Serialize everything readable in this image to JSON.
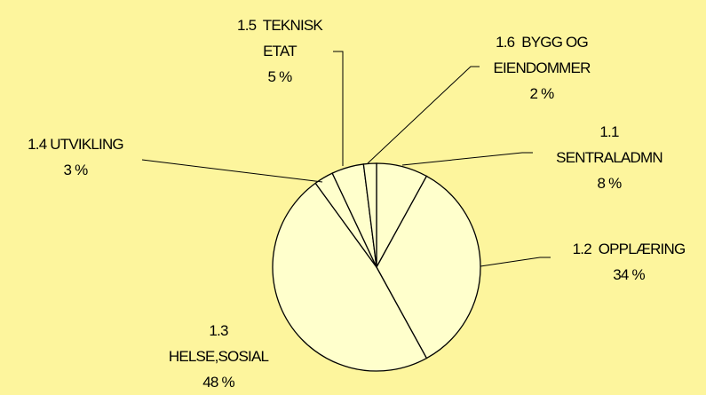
{
  "chart_data": {
    "type": "pie",
    "categories": [
      "1.1\nSENTRALADMN",
      "1.2  OPPLÆRING",
      "1.3\nHELSE,SOSIAL",
      "1.4 UTVIKLING",
      "1.5  TEKNISK\nETAT",
      "1.6  BYGG OG\nEIENDOMMER"
    ],
    "values": [
      8,
      34,
      48,
      3,
      5,
      2
    ],
    "value_labels": [
      "8 %",
      "34 %",
      "48 %",
      "3 %",
      "5 %",
      "2 %"
    ],
    "color": "#ffffcc"
  }
}
